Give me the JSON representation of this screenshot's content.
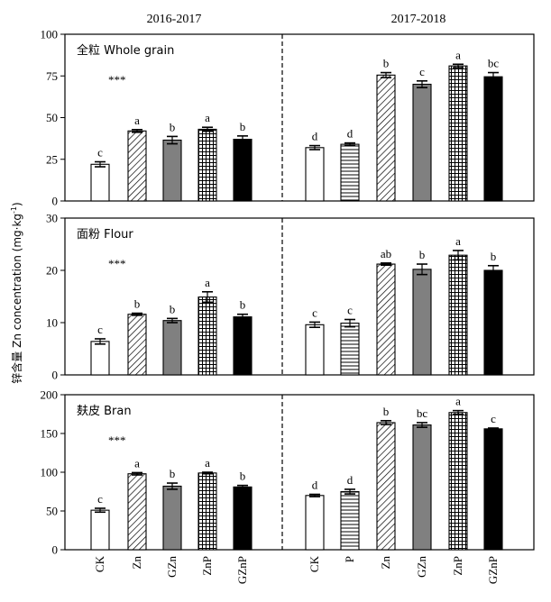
{
  "figure": {
    "ylabel": "锌含量 Zn concentration (mg·kg",
    "ylabel_sup": "-1",
    "ylabel_close": ")",
    "years": [
      "2016-2017",
      "2017-2018"
    ]
  },
  "chart_data": [
    {
      "type": "bar",
      "title": "全粒 Whole grain",
      "significance": "***",
      "ylim": [
        0,
        100
      ],
      "yticks": [
        0,
        25,
        50,
        75,
        100
      ],
      "groups": [
        {
          "year": "2016-2017",
          "categories": [
            "CK",
            "Zn",
            "GZn",
            "ZnP",
            "GZnP"
          ],
          "values": [
            22,
            42,
            36.5,
            43,
            37
          ],
          "errors": [
            1.5,
            0.8,
            2.2,
            1.2,
            2.0
          ],
          "letters": [
            "c",
            "a",
            "b",
            "a",
            "b"
          ]
        },
        {
          "year": "2017-2018",
          "categories": [
            "CK",
            "P",
            "Zn",
            "GZn",
            "ZnP",
            "GZnP"
          ],
          "values": [
            32,
            34,
            75.5,
            70,
            81,
            74.5
          ],
          "errors": [
            1.2,
            0.8,
            1.5,
            2.0,
            1.0,
            2.5
          ],
          "letters": [
            "d",
            "d",
            "b",
            "c",
            "a",
            "bc"
          ]
        }
      ]
    },
    {
      "type": "bar",
      "title": "面粉 Flour",
      "significance": "***",
      "ylim": [
        0,
        30
      ],
      "yticks": [
        0,
        10,
        20,
        30
      ],
      "groups": [
        {
          "year": "2016-2017",
          "categories": [
            "CK",
            "Zn",
            "GZn",
            "ZnP",
            "GZnP"
          ],
          "values": [
            6.4,
            11.6,
            10.4,
            14.9,
            11.1
          ],
          "errors": [
            0.5,
            0.2,
            0.4,
            1.0,
            0.5
          ],
          "letters": [
            "c",
            "b",
            "b",
            "a",
            "b"
          ]
        },
        {
          "year": "2017-2018",
          "categories": [
            "CK",
            "P",
            "Zn",
            "GZn",
            "ZnP",
            "GZnP"
          ],
          "values": [
            9.6,
            9.9,
            21.2,
            20.2,
            22.9,
            20.0
          ],
          "errors": [
            0.5,
            0.7,
            0.2,
            1.0,
            0.9,
            0.9
          ],
          "letters": [
            "c",
            "c",
            "ab",
            "b",
            "a",
            "b"
          ]
        }
      ]
    },
    {
      "type": "bar",
      "title": "麸皮 Bran",
      "significance": "***",
      "ylim": [
        0,
        200
      ],
      "yticks": [
        0,
        50,
        100,
        150,
        200
      ],
      "groups": [
        {
          "year": "2016-2017",
          "categories": [
            "CK",
            "Zn",
            "GZn",
            "ZnP",
            "GZnP"
          ],
          "values": [
            51,
            98,
            82,
            99,
            81
          ],
          "errors": [
            2.5,
            1.5,
            4.0,
            1.0,
            2.0
          ],
          "letters": [
            "c",
            "a",
            "b",
            "a",
            "b"
          ]
        },
        {
          "year": "2017-2018",
          "categories": [
            "CK",
            "P",
            "Zn",
            "GZn",
            "ZnP",
            "GZnP"
          ],
          "values": [
            70,
            75,
            164,
            161,
            177,
            156
          ],
          "errors": [
            1.5,
            3.0,
            2.5,
            3.0,
            2.5,
            1.0
          ],
          "letters": [
            "d",
            "d",
            "b",
            "bc",
            "a",
            "c"
          ]
        }
      ]
    }
  ],
  "x_axis_labels": [
    "CK",
    "Zn",
    "GZn",
    "ZnP",
    "GZnP",
    "CK",
    "P",
    "Zn",
    "GZn",
    "ZnP",
    "GZnP"
  ],
  "treatment_fills": {
    "CK": "white",
    "P": "horizontal-lines",
    "Zn": "diagonal-hatch",
    "GZn": "#808080",
    "ZnP": "grid",
    "GZnP": "#000000"
  }
}
